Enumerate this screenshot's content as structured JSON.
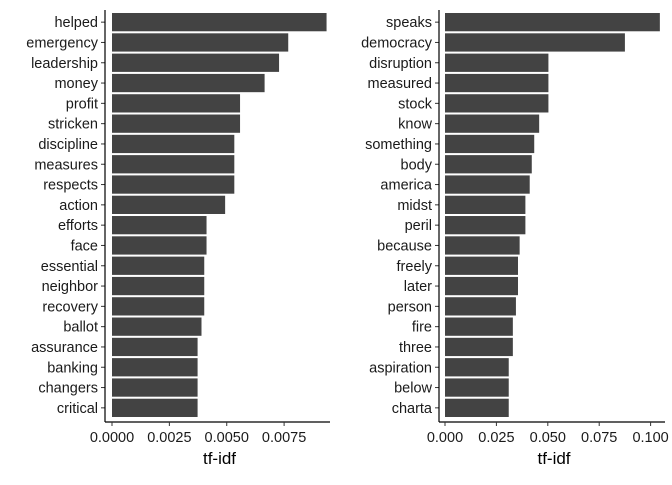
{
  "chart_data": [
    {
      "type": "bar",
      "orientation": "horizontal",
      "xlabel": "tf-idf",
      "xlim": [
        0,
        0.0095
      ],
      "xticks": [
        0,
        0.0025,
        0.005,
        0.0075
      ],
      "xtick_labels": [
        "0.0000",
        "0.0025",
        "0.0050",
        "0.0075"
      ],
      "grid": false,
      "bar_color": "#434343",
      "categories": [
        "helped",
        "emergency",
        "leadership",
        "money",
        "profit",
        "stricken",
        "discipline",
        "measures",
        "respects",
        "action",
        "efforts",
        "face",
        "essential",
        "neighbor",
        "recovery",
        "ballot",
        "assurance",
        "banking",
        "changers",
        "critical"
      ],
      "values": [
        0.00935,
        0.00768,
        0.00728,
        0.00665,
        0.00558,
        0.00558,
        0.00533,
        0.00533,
        0.00533,
        0.00493,
        0.00412,
        0.00412,
        0.00402,
        0.00402,
        0.00402,
        0.0039,
        0.00373,
        0.00373,
        0.00373,
        0.00373
      ]
    },
    {
      "type": "bar",
      "orientation": "horizontal",
      "xlabel": "tf-idf",
      "xlim": [
        0,
        0.107
      ],
      "xticks": [
        0,
        0.025,
        0.05,
        0.075,
        0.1
      ],
      "xtick_labels": [
        "0.000",
        "0.025",
        "0.050",
        "0.075",
        "0.100"
      ],
      "grid": false,
      "bar_color": "#434343",
      "categories": [
        "speaks",
        "democracy",
        "disruption",
        "measured",
        "stock",
        "know",
        "something",
        "body",
        "america",
        "midst",
        "peril",
        "because",
        "freely",
        "later",
        "person",
        "fire",
        "three",
        "aspiration",
        "below",
        "charta"
      ],
      "values": [
        0.1045,
        0.0875,
        0.0503,
        0.0503,
        0.0503,
        0.0458,
        0.0434,
        0.0422,
        0.0412,
        0.0391,
        0.0391,
        0.0363,
        0.0355,
        0.0355,
        0.0345,
        0.033,
        0.033,
        0.031,
        0.031,
        0.031
      ]
    }
  ]
}
